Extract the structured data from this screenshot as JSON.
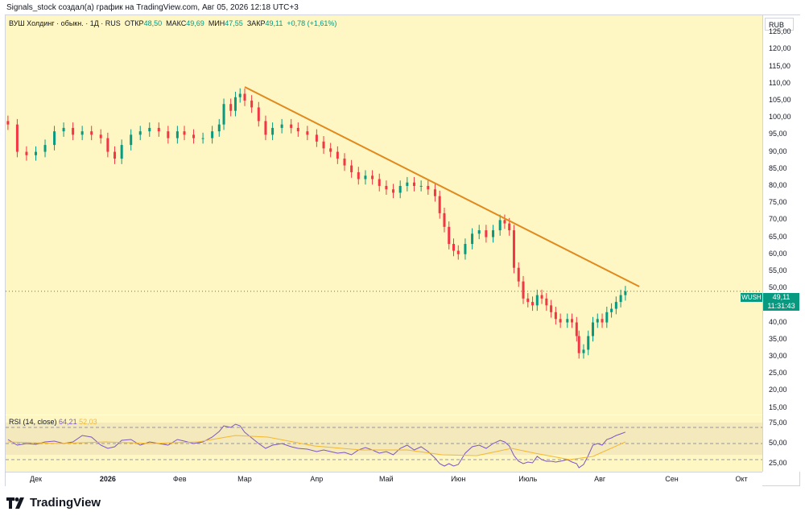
{
  "caption": "Signals_stock создал(а) график на TradingView.com, Авг 05, 2026 12:18 UTC+3",
  "legend": {
    "title": "ВУШ Холдинг · обыкн. · 1Д · RUS",
    "open_label": "ОТКР",
    "open": "48,50",
    "high_label": "МАКС",
    "high": "49,69",
    "low_label": "МИН",
    "low": "47,55",
    "close_label": "ЗАКР",
    "close": "49,11",
    "change": "+0,78 (+1,61%)"
  },
  "rsi_legend": {
    "label": "RSI (14, close)",
    "value": "64,21",
    "ma_value": "52,03"
  },
  "currency": "RUB",
  "price_badge": {
    "symbol": "WUSH",
    "price": "49,11",
    "countdown": "11:31:43"
  },
  "logo_text": "TradingView",
  "colors": {
    "up": "#089981",
    "down": "#f23645",
    "trendline": "#e08a1e",
    "rsi": "#7e57c2",
    "rsi_ma": "#f5b82e",
    "background": "#fef6c3"
  },
  "chart_data": {
    "type": "candlestick",
    "symbol": "WUSH",
    "y_ticks": [
      "125,00",
      "120,00",
      "115,00",
      "110,00",
      "105,00",
      "100,00",
      "95,00",
      "90,00",
      "85,00",
      "80,00",
      "75,00",
      "70,00",
      "65,00",
      "60,00",
      "55,00",
      "50,00",
      "45,00",
      "40,00",
      "35,00",
      "30,00",
      "25,00",
      "20,00",
      "15,00"
    ],
    "ylim": [
      13,
      130
    ],
    "x_ticks": [
      {
        "label": "Дек",
        "day": 0
      },
      {
        "label": "2026",
        "day": 31,
        "bold": true
      },
      {
        "label": "Фев",
        "day": 62
      },
      {
        "label": "Мар",
        "day": 90
      },
      {
        "label": "Апр",
        "day": 121
      },
      {
        "label": "Май",
        "day": 151
      },
      {
        "label": "Июн",
        "day": 182
      },
      {
        "label": "Июль",
        "day": 212
      },
      {
        "label": "Авг",
        "day": 243
      },
      {
        "label": "Сен",
        "day": 274
      },
      {
        "label": "Окт",
        "day": 304
      }
    ],
    "xlim": [
      -13,
      313
    ],
    "close_series": [
      {
        "day": -12,
        "close": 98
      },
      {
        "day": -8,
        "close": 90
      },
      {
        "day": -4,
        "close": 89
      },
      {
        "day": 0,
        "close": 90
      },
      {
        "day": 4,
        "close": 92
      },
      {
        "day": 8,
        "close": 96
      },
      {
        "day": 12,
        "close": 97
      },
      {
        "day": 16,
        "close": 95
      },
      {
        "day": 20,
        "close": 96
      },
      {
        "day": 24,
        "close": 95
      },
      {
        "day": 28,
        "close": 94
      },
      {
        "day": 31,
        "close": 90
      },
      {
        "day": 34,
        "close": 88
      },
      {
        "day": 37,
        "close": 92
      },
      {
        "day": 41,
        "close": 95
      },
      {
        "day": 45,
        "close": 96
      },
      {
        "day": 49,
        "close": 97
      },
      {
        "day": 53,
        "close": 96
      },
      {
        "day": 57,
        "close": 94
      },
      {
        "day": 61,
        "close": 96
      },
      {
        "day": 64,
        "close": 95
      },
      {
        "day": 68,
        "close": 94
      },
      {
        "day": 72,
        "close": 94
      },
      {
        "day": 76,
        "close": 96
      },
      {
        "day": 79,
        "close": 98
      },
      {
        "day": 81,
        "close": 104
      },
      {
        "day": 84,
        "close": 102
      },
      {
        "day": 86,
        "close": 106
      },
      {
        "day": 88,
        "close": 107
      },
      {
        "day": 90,
        "close": 105
      },
      {
        "day": 93,
        "close": 103
      },
      {
        "day": 96,
        "close": 99
      },
      {
        "day": 99,
        "close": 95
      },
      {
        "day": 102,
        "close": 97
      },
      {
        "day": 106,
        "close": 98
      },
      {
        "day": 110,
        "close": 97
      },
      {
        "day": 113,
        "close": 96
      },
      {
        "day": 117,
        "close": 95
      },
      {
        "day": 121,
        "close": 93
      },
      {
        "day": 124,
        "close": 91
      },
      {
        "day": 127,
        "close": 90
      },
      {
        "day": 130,
        "close": 88
      },
      {
        "day": 133,
        "close": 86
      },
      {
        "day": 136,
        "close": 84
      },
      {
        "day": 139,
        "close": 82
      },
      {
        "day": 142,
        "close": 83
      },
      {
        "day": 145,
        "close": 82
      },
      {
        "day": 148,
        "close": 80
      },
      {
        "day": 151,
        "close": 79
      },
      {
        "day": 154,
        "close": 78
      },
      {
        "day": 157,
        "close": 80
      },
      {
        "day": 160,
        "close": 81
      },
      {
        "day": 163,
        "close": 80
      },
      {
        "day": 166,
        "close": 80
      },
      {
        "day": 169,
        "close": 79
      },
      {
        "day": 172,
        "close": 77
      },
      {
        "day": 174,
        "close": 72
      },
      {
        "day": 176,
        "close": 68
      },
      {
        "day": 178,
        "close": 63
      },
      {
        "day": 180,
        "close": 61
      },
      {
        "day": 182,
        "close": 60
      },
      {
        "day": 185,
        "close": 63
      },
      {
        "day": 188,
        "close": 66
      },
      {
        "day": 191,
        "close": 67
      },
      {
        "day": 194,
        "close": 65
      },
      {
        "day": 197,
        "close": 67
      },
      {
        "day": 200,
        "close": 70
      },
      {
        "day": 202,
        "close": 69
      },
      {
        "day": 204,
        "close": 67
      },
      {
        "day": 206,
        "close": 56
      },
      {
        "day": 208,
        "close": 52
      },
      {
        "day": 210,
        "close": 47
      },
      {
        "day": 212,
        "close": 46
      },
      {
        "day": 214,
        "close": 45
      },
      {
        "day": 216,
        "close": 48
      },
      {
        "day": 218,
        "close": 47
      },
      {
        "day": 220,
        "close": 45
      },
      {
        "day": 222,
        "close": 43
      },
      {
        "day": 224,
        "close": 41
      },
      {
        "day": 226,
        "close": 40
      },
      {
        "day": 229,
        "close": 41
      },
      {
        "day": 231,
        "close": 40
      },
      {
        "day": 233,
        "close": 36
      },
      {
        "day": 234,
        "close": 31
      },
      {
        "day": 236,
        "close": 32
      },
      {
        "day": 238,
        "close": 36
      },
      {
        "day": 240,
        "close": 40
      },
      {
        "day": 242,
        "close": 41
      },
      {
        "day": 244,
        "close": 40
      },
      {
        "day": 246,
        "close": 43
      },
      {
        "day": 248,
        "close": 44
      },
      {
        "day": 250,
        "close": 46
      },
      {
        "day": 252,
        "close": 48
      },
      {
        "day": 254,
        "close": 49.11
      }
    ],
    "trendline": {
      "start": {
        "day": 90,
        "price": 109
      },
      "end": {
        "day": 260,
        "price": 50.5
      }
    },
    "last_price": 49.11,
    "rsi": {
      "y_ticks": [
        "75,00",
        "50,00",
        "25,00"
      ],
      "levels": [
        70,
        50,
        30
      ],
      "ylim": [
        15,
        85
      ],
      "values": [
        {
          "day": -12,
          "v": 55
        },
        {
          "day": -8,
          "v": 48
        },
        {
          "day": -4,
          "v": 50
        },
        {
          "day": 0,
          "v": 49
        },
        {
          "day": 4,
          "v": 52
        },
        {
          "day": 8,
          "v": 53
        },
        {
          "day": 12,
          "v": 50
        },
        {
          "day": 16,
          "v": 52
        },
        {
          "day": 20,
          "v": 60
        },
        {
          "day": 24,
          "v": 58
        },
        {
          "day": 28,
          "v": 48
        },
        {
          "day": 31,
          "v": 44
        },
        {
          "day": 34,
          "v": 46
        },
        {
          "day": 37,
          "v": 54
        },
        {
          "day": 41,
          "v": 55
        },
        {
          "day": 45,
          "v": 48
        },
        {
          "day": 49,
          "v": 52
        },
        {
          "day": 53,
          "v": 50
        },
        {
          "day": 57,
          "v": 48
        },
        {
          "day": 61,
          "v": 55
        },
        {
          "day": 64,
          "v": 53
        },
        {
          "day": 68,
          "v": 50
        },
        {
          "day": 72,
          "v": 52
        },
        {
          "day": 76,
          "v": 58
        },
        {
          "day": 79,
          "v": 65
        },
        {
          "day": 81,
          "v": 72
        },
        {
          "day": 84,
          "v": 70
        },
        {
          "day": 86,
          "v": 74
        },
        {
          "day": 88,
          "v": 72
        },
        {
          "day": 90,
          "v": 64
        },
        {
          "day": 93,
          "v": 57
        },
        {
          "day": 96,
          "v": 50
        },
        {
          "day": 99,
          "v": 44
        },
        {
          "day": 102,
          "v": 48
        },
        {
          "day": 106,
          "v": 50
        },
        {
          "day": 110,
          "v": 46
        },
        {
          "day": 113,
          "v": 44
        },
        {
          "day": 117,
          "v": 43
        },
        {
          "day": 121,
          "v": 40
        },
        {
          "day": 124,
          "v": 42
        },
        {
          "day": 127,
          "v": 40
        },
        {
          "day": 130,
          "v": 38
        },
        {
          "day": 133,
          "v": 39
        },
        {
          "day": 136,
          "v": 36
        },
        {
          "day": 139,
          "v": 42
        },
        {
          "day": 142,
          "v": 45
        },
        {
          "day": 145,
          "v": 42
        },
        {
          "day": 148,
          "v": 38
        },
        {
          "day": 151,
          "v": 40
        },
        {
          "day": 154,
          "v": 36
        },
        {
          "day": 157,
          "v": 44
        },
        {
          "day": 160,
          "v": 48
        },
        {
          "day": 163,
          "v": 42
        },
        {
          "day": 166,
          "v": 46
        },
        {
          "day": 169,
          "v": 40
        },
        {
          "day": 172,
          "v": 32
        },
        {
          "day": 174,
          "v": 25
        },
        {
          "day": 176,
          "v": 22
        },
        {
          "day": 178,
          "v": 25
        },
        {
          "day": 180,
          "v": 22
        },
        {
          "day": 182,
          "v": 24
        },
        {
          "day": 185,
          "v": 38
        },
        {
          "day": 188,
          "v": 46
        },
        {
          "day": 191,
          "v": 48
        },
        {
          "day": 194,
          "v": 44
        },
        {
          "day": 197,
          "v": 50
        },
        {
          "day": 200,
          "v": 54
        },
        {
          "day": 202,
          "v": 52
        },
        {
          "day": 204,
          "v": 47
        },
        {
          "day": 206,
          "v": 35
        },
        {
          "day": 208,
          "v": 28
        },
        {
          "day": 210,
          "v": 25
        },
        {
          "day": 212,
          "v": 27
        },
        {
          "day": 214,
          "v": 26
        },
        {
          "day": 216,
          "v": 34
        },
        {
          "day": 218,
          "v": 30
        },
        {
          "day": 220,
          "v": 28
        },
        {
          "day": 222,
          "v": 28
        },
        {
          "day": 224,
          "v": 27
        },
        {
          "day": 226,
          "v": 28
        },
        {
          "day": 229,
          "v": 30
        },
        {
          "day": 231,
          "v": 27
        },
        {
          "day": 233,
          "v": 25
        },
        {
          "day": 234,
          "v": 20
        },
        {
          "day": 236,
          "v": 24
        },
        {
          "day": 238,
          "v": 35
        },
        {
          "day": 240,
          "v": 48
        },
        {
          "day": 242,
          "v": 50
        },
        {
          "day": 244,
          "v": 48
        },
        {
          "day": 246,
          "v": 55
        },
        {
          "day": 248,
          "v": 57
        },
        {
          "day": 250,
          "v": 60
        },
        {
          "day": 252,
          "v": 62
        },
        {
          "day": 254,
          "v": 64.21
        }
      ],
      "ma_values": [
        {
          "day": -12,
          "v": 52
        },
        {
          "day": 10,
          "v": 50
        },
        {
          "day": 30,
          "v": 52
        },
        {
          "day": 50,
          "v": 50
        },
        {
          "day": 70,
          "v": 52
        },
        {
          "day": 86,
          "v": 60
        },
        {
          "day": 100,
          "v": 58
        },
        {
          "day": 120,
          "v": 47
        },
        {
          "day": 140,
          "v": 42
        },
        {
          "day": 160,
          "v": 42
        },
        {
          "day": 175,
          "v": 36
        },
        {
          "day": 190,
          "v": 35
        },
        {
          "day": 205,
          "v": 44
        },
        {
          "day": 215,
          "v": 38
        },
        {
          "day": 230,
          "v": 30
        },
        {
          "day": 240,
          "v": 34
        },
        {
          "day": 254,
          "v": 52.03
        }
      ]
    }
  }
}
